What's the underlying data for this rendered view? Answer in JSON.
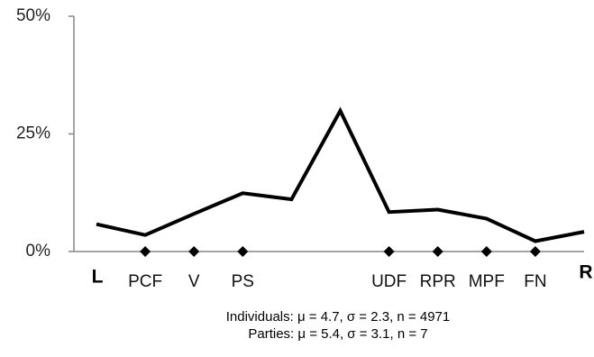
{
  "chart_data": {
    "type": "line",
    "y_tick_labels": [
      "50%",
      "25%",
      "0%"
    ],
    "y_ticks": [
      50,
      25,
      0
    ],
    "ylim": [
      0,
      50
    ],
    "x": [
      0,
      1,
      2,
      3,
      4,
      5,
      6,
      7,
      8,
      9,
      10
    ],
    "xlim": [
      0,
      10
    ],
    "series": [
      {
        "values": [
          5.8,
          3.5,
          8.0,
          12.4,
          11.1,
          29.9,
          8.4,
          8.9,
          7.0,
          2.2,
          4.2
        ]
      }
    ],
    "parties": [
      {
        "label": "PCF",
        "position": 1
      },
      {
        "label": "V",
        "position": 2
      },
      {
        "label": "PS",
        "position": 3
      },
      {
        "label": "UDF",
        "position": 6
      },
      {
        "label": "RPR",
        "position": 7
      },
      {
        "label": "MPF",
        "position": 8
      },
      {
        "label": "FN",
        "position": 9
      }
    ],
    "axis_end_labels": {
      "left": "L",
      "right": "R"
    },
    "stats": {
      "individuals": "Individuals: μ = 4.7, σ = 2.3, n = 4971",
      "parties": "Parties: μ = 5.4, σ = 3.1, n = 7"
    },
    "grid": false,
    "legend": "none",
    "line_color": "#000000",
    "axis_color": "#868686",
    "marker_color": "#000000"
  }
}
